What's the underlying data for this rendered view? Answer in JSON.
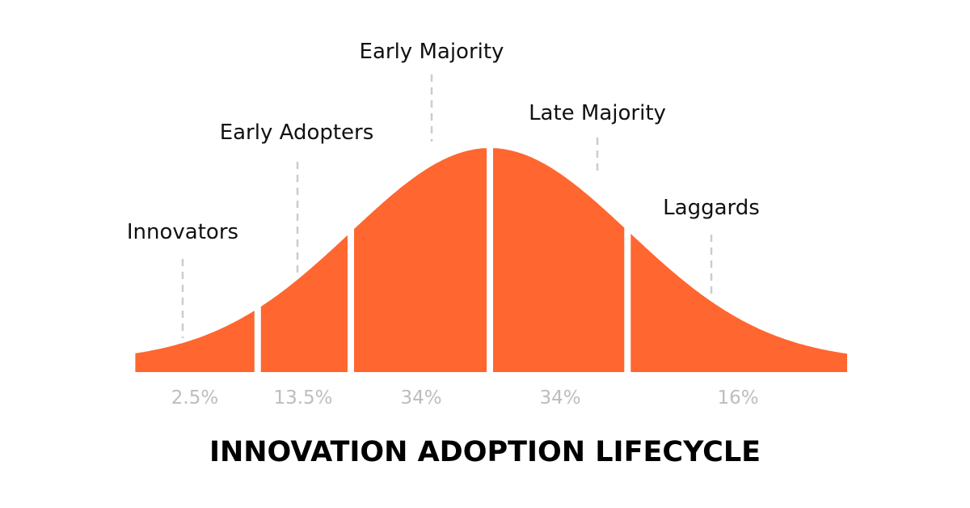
{
  "chart_data": {
    "type": "area",
    "title": "INNOVATION ADOPTION LIFECYCLE",
    "distribution": "normal",
    "x_range_sigma": [
      -2.55,
      2.57
    ],
    "segments": [
      {
        "name": "Innovators",
        "percent_label": "2.5%",
        "from_sigma": -2.55,
        "to_sigma": -1.67
      },
      {
        "name": "Early Adopters",
        "percent_label": "13.5%",
        "from_sigma": -1.67,
        "to_sigma": -1.0
      },
      {
        "name": "Early Majority",
        "percent_label": "34%",
        "from_sigma": -1.0,
        "to_sigma": 0
      },
      {
        "name": "Late Majority",
        "percent_label": "34%",
        "from_sigma": 0,
        "to_sigma": 0.99
      },
      {
        "name": "Laggards",
        "percent_label": "16%",
        "from_sigma": 0.99,
        "to_sigma": 2.57
      }
    ],
    "colors": {
      "fill": "#FF6630",
      "percent_text": "#BDBDBD",
      "leader": "#CCCCCC"
    }
  }
}
